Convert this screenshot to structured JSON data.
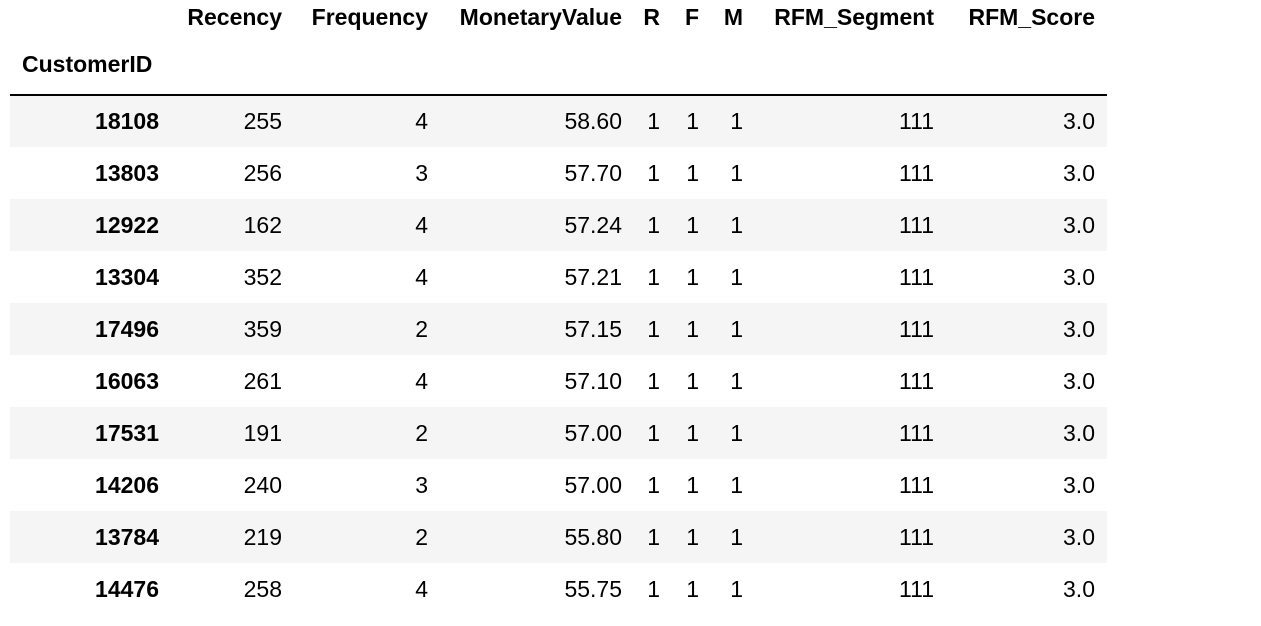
{
  "table": {
    "columns": [
      "Recency",
      "Frequency",
      "MonetaryValue",
      "R",
      "F",
      "M",
      "RFM_Segment",
      "RFM_Score"
    ],
    "index_name": "CustomerID",
    "rows": [
      {
        "id": "18108",
        "cells": [
          "255",
          "4",
          "58.60",
          "1",
          "1",
          "1",
          "111",
          "3.0"
        ]
      },
      {
        "id": "13803",
        "cells": [
          "256",
          "3",
          "57.70",
          "1",
          "1",
          "1",
          "111",
          "3.0"
        ]
      },
      {
        "id": "12922",
        "cells": [
          "162",
          "4",
          "57.24",
          "1",
          "1",
          "1",
          "111",
          "3.0"
        ]
      },
      {
        "id": "13304",
        "cells": [
          "352",
          "4",
          "57.21",
          "1",
          "1",
          "1",
          "111",
          "3.0"
        ]
      },
      {
        "id": "17496",
        "cells": [
          "359",
          "2",
          "57.15",
          "1",
          "1",
          "1",
          "111",
          "3.0"
        ]
      },
      {
        "id": "16063",
        "cells": [
          "261",
          "4",
          "57.10",
          "1",
          "1",
          "1",
          "111",
          "3.0"
        ]
      },
      {
        "id": "17531",
        "cells": [
          "191",
          "2",
          "57.00",
          "1",
          "1",
          "1",
          "111",
          "3.0"
        ]
      },
      {
        "id": "14206",
        "cells": [
          "240",
          "3",
          "57.00",
          "1",
          "1",
          "1",
          "111",
          "3.0"
        ]
      },
      {
        "id": "13784",
        "cells": [
          "219",
          "2",
          "55.80",
          "1",
          "1",
          "1",
          "111",
          "3.0"
        ]
      },
      {
        "id": "14476",
        "cells": [
          "258",
          "4",
          "55.75",
          "1",
          "1",
          "1",
          "111",
          "3.0"
        ]
      }
    ]
  }
}
